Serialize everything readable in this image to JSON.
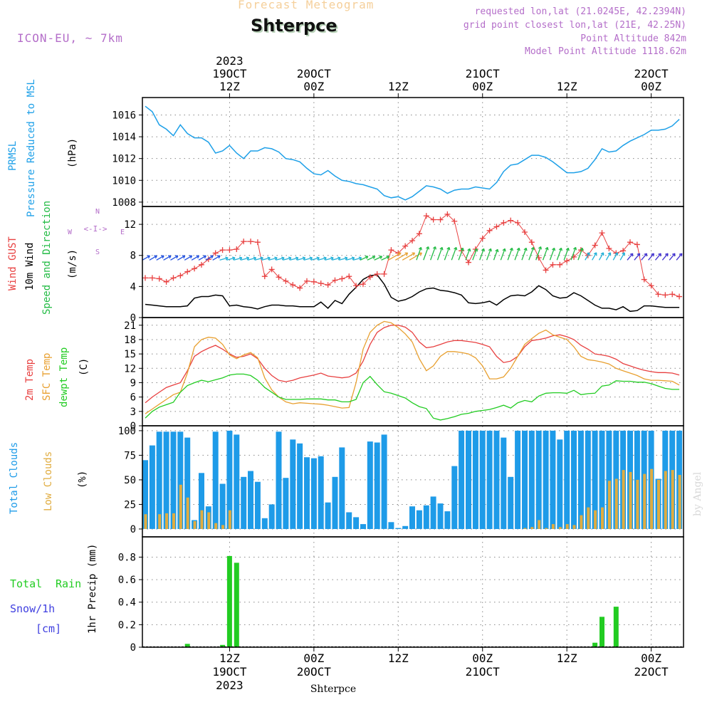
{
  "header": {
    "product": "Forecast Meteogram",
    "location": "Shterpce",
    "model": "ICON-EU, ~ 7km",
    "requested": "requested lon,lat (21.0245E, 42.2394N)",
    "grid_point": "grid point closest lon,lat (21E, 42.25N)",
    "point_altitude": "Point Altitude 842m",
    "model_altitude": "Model Point Altitude 1118.62m"
  },
  "watermark": "by Angel",
  "footer_location": "Shterpce",
  "colors": {
    "pressure": "#1ea0e8",
    "gust": "#e84040",
    "wind": "#000000",
    "wind_dir": "#22bb44",
    "temp2m": "#e84040",
    "sfc_temp": "#e8a030",
    "dewpt": "#22cc22",
    "total_clouds": "#1e9be8",
    "low_clouds": "#e0ac40",
    "rain": "#22cc22",
    "snow": "#4040e0",
    "label_purple": "#b46ec9",
    "grid": "#888888"
  },
  "time_axis": {
    "top_ticks": [
      {
        "h": 12,
        "lines": [
          "2023",
          "19OCT",
          "12Z"
        ]
      },
      {
        "h": 24,
        "lines": [
          "20OCT",
          "00Z"
        ]
      },
      {
        "h": 36,
        "lines": [
          "12Z"
        ]
      },
      {
        "h": 48,
        "lines": [
          "21OCT",
          "00Z"
        ]
      },
      {
        "h": 60,
        "lines": [
          "12Z"
        ]
      },
      {
        "h": 72,
        "lines": [
          "22OCT",
          "00Z"
        ]
      }
    ],
    "bottom_ticks": [
      {
        "h": 12,
        "lines": [
          "12Z",
          "19OCT",
          "2023"
        ]
      },
      {
        "h": 24,
        "lines": [
          "00Z",
          "20OCT"
        ]
      },
      {
        "h": 36,
        "lines": [
          "12Z"
        ]
      },
      {
        "h": 48,
        "lines": [
          "00Z",
          "21OCT"
        ]
      },
      {
        "h": 60,
        "lines": [
          "12Z"
        ]
      },
      {
        "h": 72,
        "lines": [
          "00Z",
          "22OCT"
        ]
      }
    ]
  },
  "panels": {
    "pressure": {
      "labels": [
        "PRMSL",
        "Pressure Reduced to MSL",
        "(hPa)"
      ],
      "ticks": [
        1008,
        1010,
        1012,
        1014,
        1016
      ],
      "ylim": [
        1007.6,
        1017.6
      ]
    },
    "wind": {
      "labels": [
        "Wind GUST",
        "10m Wind",
        "Speed and Direction",
        "(m/s)"
      ],
      "ticks": [
        0,
        4,
        8,
        12
      ],
      "ylim": [
        0,
        14.3
      ],
      "compass": [
        "N",
        "W",
        "E",
        "S"
      ]
    },
    "temp": {
      "labels": [
        "2m Temp",
        "SFC Temp",
        "dewpt Temp",
        "(C)"
      ],
      "ticks": [
        0,
        3,
        6,
        9,
        12,
        15,
        18,
        21
      ],
      "ylim": [
        0,
        22.6
      ]
    },
    "clouds": {
      "labels": [
        "Total Clouds",
        "Low Clouds",
        "(%)"
      ],
      "ticks": [
        0,
        25,
        50,
        75,
        100
      ],
      "ylim": [
        -8,
        105
      ]
    },
    "precip": {
      "labels": [
        "Total",
        "Rain",
        "Snow/1h",
        "[cm]",
        "1hr Precip (mm)"
      ],
      "ticks": [
        "0",
        "0.2",
        "0.4",
        "0.6",
        "0.8"
      ],
      "ylim": [
        0,
        0.98
      ]
    }
  },
  "chart_data": [
    {
      "type": "line",
      "title": "PRMSL Pressure Reduced to MSL",
      "ylabel": "(hPa)",
      "x_unit": "hours from 2023-10-19 00Z",
      "x": [
        0,
        1,
        2,
        3,
        4,
        5,
        6,
        7,
        8,
        9,
        10,
        11,
        12,
        13,
        14,
        15,
        16,
        17,
        18,
        19,
        20,
        21,
        22,
        23,
        24,
        25,
        26,
        27,
        28,
        29,
        30,
        31,
        32,
        33,
        34,
        35,
        36,
        37,
        38,
        39,
        40,
        41,
        42,
        43,
        44,
        45,
        46,
        47,
        48,
        49,
        50,
        51,
        52,
        53,
        54,
        55,
        56,
        57,
        58,
        59,
        60,
        61,
        62,
        63,
        64,
        65,
        66,
        67,
        68,
        69,
        70,
        71,
        72,
        73,
        74,
        75,
        76
      ],
      "series": [
        {
          "name": "PRMSL",
          "values": [
            1016.8,
            1016.3,
            1015.1,
            1014.7,
            1014.1,
            1015.1,
            1014.3,
            1013.9,
            1013.9,
            1013.5,
            1012.5,
            1012.7,
            1013.2,
            1012.5,
            1012.0,
            1012.7,
            1012.7,
            1013.0,
            1012.9,
            1012.6,
            1012.0,
            1011.9,
            1011.7,
            1011.1,
            1010.6,
            1010.5,
            1010.9,
            1010.4,
            1010.0,
            1009.9,
            1009.7,
            1009.6,
            1009.4,
            1009.2,
            1008.6,
            1008.4,
            1008.5,
            1008.2,
            1008.5,
            1009.0,
            1009.5,
            1009.4,
            1009.2,
            1008.8,
            1009.1,
            1009.2,
            1009.2,
            1009.4,
            1009.3,
            1009.2,
            1009.8,
            1010.8,
            1011.4,
            1011.5,
            1011.9,
            1012.3,
            1012.3,
            1012.1,
            1011.7,
            1011.2,
            1010.7,
            1010.7,
            1010.8,
            1011.1,
            1011.9,
            1012.9,
            1012.6,
            1012.7,
            1013.2,
            1013.6,
            1013.9,
            1014.2,
            1014.6,
            1014.6,
            1014.7,
            1015.0,
            1015.6
          ]
        }
      ]
    },
    {
      "type": "line",
      "title": "Wind GUST / 10m Wind Speed and Direction",
      "ylabel": "(m/s)",
      "x": [
        0,
        1,
        2,
        3,
        4,
        5,
        6,
        7,
        8,
        9,
        10,
        11,
        12,
        13,
        14,
        15,
        16,
        17,
        18,
        19,
        20,
        21,
        22,
        23,
        24,
        25,
        26,
        27,
        28,
        29,
        30,
        31,
        32,
        33,
        34,
        35,
        36,
        37,
        38,
        39,
        40,
        41,
        42,
        43,
        44,
        45,
        46,
        47,
        48,
        49,
        50,
        51,
        52,
        53,
        54,
        55,
        56,
        57,
        58,
        59,
        60,
        61,
        62,
        63,
        64,
        65,
        66,
        67,
        68,
        69,
        70,
        71,
        72,
        73,
        74,
        75,
        76
      ],
      "series": [
        {
          "name": "Wind GUST",
          "values": [
            5.1,
            5.1,
            5.0,
            4.6,
            5.1,
            5.4,
            5.9,
            6.3,
            6.8,
            7.5,
            8.3,
            8.7,
            8.7,
            8.8,
            9.8,
            9.8,
            9.7,
            5.3,
            6.2,
            5.2,
            4.7,
            4.2,
            3.8,
            4.7,
            4.6,
            4.4,
            4.2,
            4.8,
            5.0,
            5.3,
            4.1,
            4.3,
            5.2,
            5.6,
            5.6,
            8.7,
            8.3,
            9.2,
            9.9,
            10.8,
            13.1,
            12.6,
            12.6,
            13.3,
            12.4,
            8.6,
            7.1,
            8.8,
            10.2,
            11.2,
            11.7,
            12.2,
            12.5,
            12.2,
            11.0,
            9.7,
            7.7,
            6.1,
            6.8,
            6.8,
            7.3,
            7.8,
            8.7,
            8.0,
            9.3,
            10.9,
            8.9,
            8.3,
            8.6,
            9.7,
            9.4,
            4.9,
            4.1,
            3.0,
            2.9,
            3.0,
            2.7
          ]
        },
        {
          "name": "10m Wind",
          "values": [
            1.7,
            1.6,
            1.5,
            1.4,
            1.4,
            1.4,
            1.5,
            2.5,
            2.7,
            2.7,
            2.9,
            2.8,
            1.5,
            1.6,
            1.4,
            1.3,
            1.1,
            1.4,
            1.6,
            1.6,
            1.5,
            1.5,
            1.4,
            1.4,
            1.4,
            2.0,
            1.2,
            2.2,
            1.8,
            3.0,
            3.9,
            4.9,
            5.4,
            5.5,
            4.3,
            2.6,
            2.1,
            2.3,
            2.7,
            3.3,
            3.7,
            3.8,
            3.5,
            3.4,
            3.2,
            2.9,
            1.9,
            1.8,
            1.9,
            2.1,
            1.6,
            2.3,
            2.8,
            2.9,
            2.8,
            3.3,
            4.1,
            3.6,
            2.8,
            2.5,
            2.6,
            3.2,
            2.8,
            2.2,
            1.6,
            1.2,
            1.2,
            1.0,
            1.4,
            0.8,
            0.9,
            1.5,
            1.5,
            1.4,
            1.3,
            1.3,
            1.3
          ]
        }
      ]
    },
    {
      "type": "line",
      "title": "2m Temp / SFC Temp / dewpt Temp",
      "ylabel": "(C)",
      "x": [
        0,
        1,
        2,
        3,
        4,
        5,
        6,
        7,
        8,
        9,
        10,
        11,
        12,
        13,
        14,
        15,
        16,
        17,
        18,
        19,
        20,
        21,
        22,
        23,
        24,
        25,
        26,
        27,
        28,
        29,
        30,
        31,
        32,
        33,
        34,
        35,
        36,
        37,
        38,
        39,
        40,
        41,
        42,
        43,
        44,
        45,
        46,
        47,
        48,
        49,
        50,
        51,
        52,
        53,
        54,
        55,
        56,
        57,
        58,
        59,
        60,
        61,
        62,
        63,
        64,
        65,
        66,
        67,
        68,
        69,
        70,
        71,
        72,
        73,
        74,
        75,
        76
      ],
      "series": [
        {
          "name": "2m Temp",
          "values": [
            4.8,
            6.0,
            7.0,
            8.0,
            8.5,
            9.0,
            11.5,
            14.5,
            15.5,
            16.2,
            16.8,
            16.0,
            15.0,
            14.3,
            14.5,
            15.0,
            14.0,
            12.0,
            10.5,
            9.5,
            9.2,
            9.5,
            10.0,
            10.3,
            10.6,
            11.0,
            10.4,
            10.2,
            10.0,
            10.2,
            11.0,
            13.5,
            17.0,
            19.5,
            20.5,
            21.0,
            21.0,
            20.6,
            19.5,
            17.5,
            16.3,
            16.5,
            17.0,
            17.5,
            17.8,
            17.8,
            17.6,
            17.4,
            17.0,
            16.5,
            14.5,
            13.2,
            13.5,
            14.5,
            16.5,
            17.8,
            18.0,
            18.3,
            18.8,
            19.0,
            18.6,
            18.0,
            16.8,
            16.0,
            15.0,
            14.8,
            14.5,
            13.9,
            13.0,
            12.5,
            12.0,
            11.6,
            11.3,
            11.1,
            11.1,
            11.0,
            10.6
          ]
        },
        {
          "name": "SFC Temp",
          "values": [
            2.5,
            3.5,
            4.5,
            5.5,
            6.5,
            7.0,
            11.0,
            16.5,
            18.0,
            18.5,
            18.3,
            17.0,
            14.8,
            14.0,
            14.8,
            15.3,
            14.2,
            10.0,
            7.5,
            6.0,
            5.0,
            4.6,
            4.8,
            4.7,
            4.6,
            4.5,
            4.3,
            4.0,
            3.7,
            3.8,
            9.0,
            16.0,
            19.5,
            21.0,
            21.8,
            21.5,
            20.5,
            19.2,
            17.5,
            14.0,
            11.5,
            12.5,
            14.5,
            15.5,
            15.5,
            15.3,
            15.0,
            14.2,
            12.5,
            9.8,
            9.8,
            10.2,
            12.0,
            14.5,
            17.0,
            18.2,
            19.3,
            20.0,
            19.0,
            18.5,
            18.0,
            16.5,
            14.5,
            13.8,
            13.6,
            13.3,
            12.9,
            12.0,
            11.5,
            11.0,
            10.5,
            9.8,
            9.5,
            9.5,
            9.4,
            9.3,
            8.5
          ]
        },
        {
          "name": "dewpt Temp",
          "values": [
            1.6,
            3.0,
            3.9,
            4.4,
            4.9,
            7.0,
            8.4,
            9.0,
            9.5,
            9.2,
            9.6,
            10.0,
            10.6,
            10.8,
            10.8,
            10.5,
            9.5,
            8.0,
            7.0,
            6.0,
            5.5,
            5.5,
            5.5,
            5.6,
            5.6,
            5.6,
            5.4,
            5.4,
            5.0,
            5.0,
            5.5,
            9.0,
            10.3,
            8.6,
            7.1,
            6.8,
            6.3,
            5.8,
            4.8,
            4.0,
            3.6,
            1.6,
            1.2,
            1.5,
            1.9,
            2.4,
            2.6,
            3.0,
            3.2,
            3.4,
            3.8,
            4.3,
            3.7,
            4.8,
            5.3,
            5.0,
            6.2,
            6.8,
            6.9,
            6.9,
            6.8,
            7.4,
            6.5,
            6.7,
            6.8,
            8.3,
            8.5,
            9.4,
            9.3,
            9.3,
            9.1,
            9.1,
            8.8,
            8.3,
            7.8,
            7.6,
            7.6
          ]
        }
      ]
    },
    {
      "type": "bar",
      "title": "Total Clouds / Low Clouds",
      "ylabel": "(%)",
      "x": [
        0,
        1,
        2,
        3,
        4,
        5,
        6,
        7,
        8,
        9,
        10,
        11,
        12,
        13,
        14,
        15,
        16,
        17,
        18,
        19,
        20,
        21,
        22,
        23,
        24,
        25,
        26,
        27,
        28,
        29,
        30,
        31,
        32,
        33,
        34,
        35,
        36,
        37,
        38,
        39,
        40,
        41,
        42,
        43,
        44,
        45,
        46,
        47,
        48,
        49,
        50,
        51,
        52,
        53,
        54,
        55,
        56,
        57,
        58,
        59,
        60,
        61,
        62,
        63,
        64,
        65,
        66,
        67,
        68,
        69,
        70,
        71,
        72,
        73,
        74,
        75,
        76
      ],
      "series": [
        {
          "name": "Total Clouds",
          "values": [
            70,
            85,
            99,
            99,
            99,
            99,
            93,
            9,
            57,
            23,
            99,
            46,
            100,
            96,
            53,
            59,
            48,
            11,
            25,
            99,
            52,
            91,
            87,
            73,
            72,
            74,
            27,
            53,
            83,
            17,
            12,
            5,
            89,
            88,
            96,
            7,
            1,
            3,
            23,
            19,
            24,
            33,
            26,
            18,
            64,
            100,
            100,
            100,
            100,
            100,
            100,
            93,
            53,
            100,
            100,
            100,
            100,
            100,
            100,
            91,
            100,
            100,
            100,
            100,
            100,
            100,
            100,
            100,
            100,
            100,
            100,
            100,
            100,
            51,
            100,
            100,
            100
          ]
        },
        {
          "name": "Low Clouds",
          "values": [
            15,
            0,
            15,
            16,
            16,
            45,
            32,
            8,
            19,
            17,
            6,
            4,
            19,
            0,
            0,
            0,
            0,
            0,
            0,
            0,
            0,
            0,
            0,
            0,
            0,
            0,
            0,
            0,
            0,
            0,
            0,
            0,
            0,
            0,
            0,
            0,
            0,
            0,
            0,
            0,
            0,
            0,
            0,
            0,
            0,
            0,
            0,
            0,
            0,
            0,
            0,
            0,
            0,
            0,
            1,
            2,
            9,
            1,
            5,
            2,
            5,
            4,
            14,
            22,
            19,
            22,
            49,
            51,
            60,
            58,
            50,
            56,
            61,
            50,
            59,
            60,
            55
          ]
        }
      ]
    },
    {
      "type": "bar",
      "title": "1hr Precip",
      "ylabel": "1hr Precip (mm)",
      "x": [
        6,
        11,
        12,
        13,
        64,
        65,
        67
      ],
      "series": [
        {
          "name": "Total Rain",
          "values": [
            0.03,
            0.02,
            0.81,
            0.75,
            0.04,
            0.27,
            0.36
          ]
        },
        {
          "name": "Snow/1h",
          "values": [
            0,
            0,
            0,
            0,
            0,
            0,
            0
          ]
        }
      ]
    }
  ]
}
